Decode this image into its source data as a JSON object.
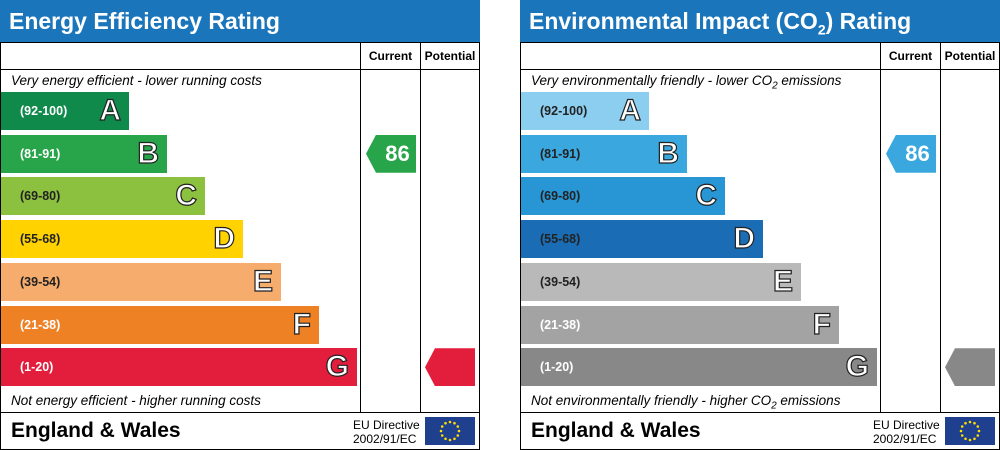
{
  "panels": [
    {
      "title": "Energy Efficiency Rating",
      "title_sub": "",
      "title_suffix": "",
      "col_current": "Current",
      "col_potential": "Potential",
      "top_note": "Very energy efficient - lower running costs",
      "top_note_sub": "",
      "top_note_tail": "",
      "bottom_note": "Not energy efficient - higher running costs",
      "bottom_note_sub": "",
      "bottom_note_tail": "",
      "bands": [
        {
          "range": "(92-100)",
          "letter": "A",
          "color": "#0f8a4b",
          "range_color": "#ffffff"
        },
        {
          "range": "(81-91)",
          "letter": "B",
          "color": "#28a54a",
          "range_color": "#ffffff"
        },
        {
          "range": "(69-80)",
          "letter": "C",
          "color": "#8cc13f",
          "range_color": "#222222"
        },
        {
          "range": "(55-68)",
          "letter": "D",
          "color": "#ffd200",
          "range_color": "#222222"
        },
        {
          "range": "(39-54)",
          "letter": "E",
          "color": "#f5ac6d",
          "range_color": "#222222"
        },
        {
          "range": "(21-38)",
          "letter": "F",
          "color": "#ee8124",
          "range_color": "#ffffff"
        },
        {
          "range": "(1-20)",
          "letter": "G",
          "color": "#e31d3c",
          "range_color": "#ffffff"
        }
      ],
      "current": {
        "value": "86",
        "band": "B",
        "color": "#28a54a"
      },
      "potential": {
        "value": "",
        "band": "G",
        "color": "#e31d3c"
      },
      "footer": "England & Wales",
      "directive_line1": "EU Directive",
      "directive_line2": "2002/91/EC"
    },
    {
      "title": "Environmental Impact (CO",
      "title_sub": "2",
      "title_suffix": ") Rating",
      "col_current": "Current",
      "col_potential": "Potential",
      "top_note": "Very environmentally friendly - lower CO",
      "top_note_sub": "2",
      "top_note_tail": " emissions",
      "bottom_note": "Not environmentally friendly - higher CO",
      "bottom_note_sub": "2",
      "bottom_note_tail": " emissions",
      "bands": [
        {
          "range": "(92-100)",
          "letter": "A",
          "color": "#8ccef0",
          "range_color": "#222222"
        },
        {
          "range": "(81-91)",
          "letter": "B",
          "color": "#3aa7de",
          "range_color": "#222222"
        },
        {
          "range": "(69-80)",
          "letter": "C",
          "color": "#2895d5",
          "range_color": "#222222"
        },
        {
          "range": "(55-68)",
          "letter": "D",
          "color": "#1a6db4",
          "range_color": "#222222"
        },
        {
          "range": "(39-54)",
          "letter": "E",
          "color": "#b9b9b9",
          "range_color": "#222222"
        },
        {
          "range": "(21-38)",
          "letter": "F",
          "color": "#a3a3a3",
          "range_color": "#ffffff"
        },
        {
          "range": "(1-20)",
          "letter": "G",
          "color": "#888888",
          "range_color": "#ffffff"
        }
      ],
      "current": {
        "value": "86",
        "band": "B",
        "color": "#3aa7de"
      },
      "potential": {
        "value": "",
        "band": "G",
        "color": "#888888"
      },
      "footer": "England & Wales",
      "directive_line1": "EU Directive",
      "directive_line2": "2002/91/EC"
    }
  ]
}
